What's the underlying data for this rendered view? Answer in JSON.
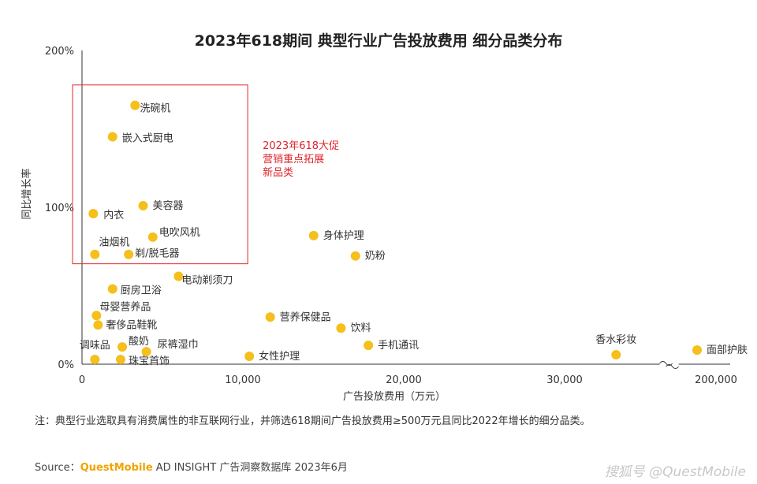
{
  "chart_data": {
    "type": "scatter",
    "title": "2023年618期间 典型行业广告投放费用 细分品类分布",
    "xlabel": "广告投放费用（万元）",
    "ylabel": "同比增长率",
    "x_ticks": [
      "0",
      "10,000",
      "20,000",
      "30,000",
      "200,000"
    ],
    "y_ticks": [
      "0%",
      "100%",
      "200%"
    ],
    "xlim": [
      0,
      200000
    ],
    "ylim": [
      0,
      200
    ],
    "axis_break": {
      "from": 36500,
      "to": 180000
    },
    "point_color": "#f5bf1c",
    "points": [
      {
        "label": "洗碗机",
        "x": 3300,
        "y": 165
      },
      {
        "label": "嵌入式厨电",
        "x": 1900,
        "y": 145
      },
      {
        "label": "内衣",
        "x": 700,
        "y": 96
      },
      {
        "label": "美容器",
        "x": 3800,
        "y": 101
      },
      {
        "label": "油烟机",
        "x": 800,
        "y": 70
      },
      {
        "label": "电吹风机",
        "x": 4400,
        "y": 81
      },
      {
        "label": "剃/脱毛器",
        "x": 2900,
        "y": 70
      },
      {
        "label": "身体护理",
        "x": 14400,
        "y": 82
      },
      {
        "label": "奶粉",
        "x": 17000,
        "y": 69
      },
      {
        "label": "电动剃须刀",
        "x": 6000,
        "y": 56
      },
      {
        "label": "厨房卫浴",
        "x": 1900,
        "y": 48
      },
      {
        "label": "母婴营养品",
        "x": 900,
        "y": 31
      },
      {
        "label": "奢侈品鞋靴",
        "x": 1000,
        "y": 25
      },
      {
        "label": "营养保健品",
        "x": 11700,
        "y": 30
      },
      {
        "label": "饮料",
        "x": 16100,
        "y": 23
      },
      {
        "label": "调味品",
        "x": 800,
        "y": 3
      },
      {
        "label": "酸奶",
        "x": 2500,
        "y": 11
      },
      {
        "label": "尿裤湿巾",
        "x": 4000,
        "y": 8
      },
      {
        "label": "珠宝首饰",
        "x": 2400,
        "y": 3
      },
      {
        "label": "女性护理",
        "x": 10400,
        "y": 5
      },
      {
        "label": "手机通讯",
        "x": 17800,
        "y": 12
      },
      {
        "label": "香水彩妆",
        "x": 33200,
        "y": 6
      },
      {
        "label": "面部护肤",
        "x": 190000,
        "y": 9
      }
    ],
    "annotation": {
      "lines": [
        "2023年618大促",
        "营销重点拓展",
        "新品类"
      ],
      "color": "#e0252b"
    },
    "highlight_box": {
      "x_range": [
        -600,
        10300
      ],
      "y_range": [
        64,
        178
      ],
      "color": "#e0252b"
    },
    "grid": false
  },
  "footnote": "注：典型行业选取具有消费属性的非互联网行业，并筛选618期间广告投放费用≥500万元且同比2022年增长的细分品类。",
  "source": {
    "prefix": "Source：",
    "brand": "QuestMobile",
    "suffix": " AD INSIGHT 广告洞察数据库 2023年6月"
  },
  "credit": "搜狐号 @QuestMobile"
}
